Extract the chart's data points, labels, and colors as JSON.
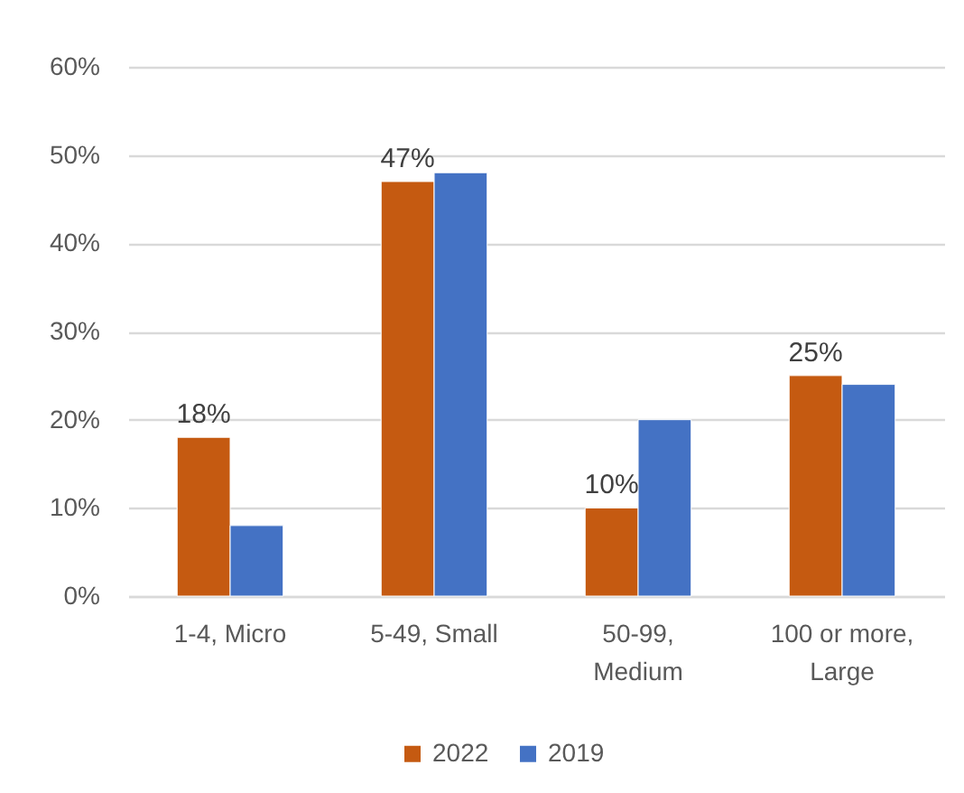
{
  "chart_data": {
    "type": "bar",
    "categories": [
      "1-4, Micro",
      "5-49, Small",
      "50-99, Medium",
      "100 or more, Large"
    ],
    "series": [
      {
        "name": "2022",
        "color": "#c55a11",
        "values": [
          18,
          47,
          10,
          25
        ],
        "value_labels": [
          "18%",
          "47%",
          "10%",
          "25%"
        ]
      },
      {
        "name": "2019",
        "color": "#4472c4",
        "values": [
          8,
          48,
          20,
          24
        ]
      }
    ],
    "ylim": [
      0,
      60
    ],
    "yticks": [
      {
        "value": 0,
        "label": "0%"
      },
      {
        "value": 10,
        "label": "10%"
      },
      {
        "value": 20,
        "label": "20%"
      },
      {
        "value": 30,
        "label": "30%"
      },
      {
        "value": 40,
        "label": "40%"
      },
      {
        "value": 50,
        "label": "50%"
      },
      {
        "value": 60,
        "label": "60%"
      }
    ],
    "grid": "y",
    "legend": "bottom"
  }
}
